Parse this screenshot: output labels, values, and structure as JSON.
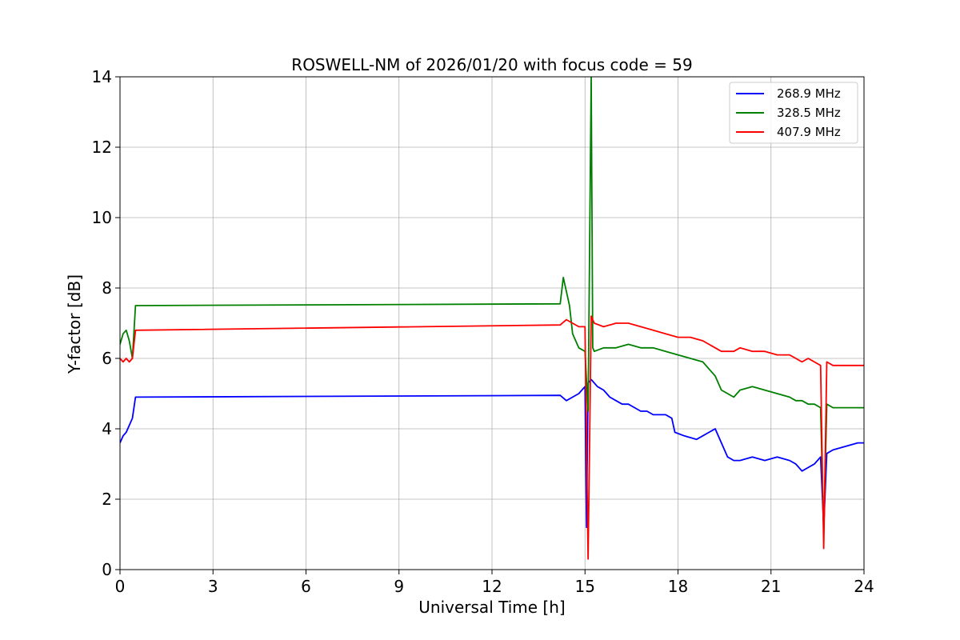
{
  "chart_data": {
    "type": "line",
    "title": "ROSWELL-NM of 2026/01/20 with focus code = 59",
    "xlabel": "Universal Time [h]",
    "ylabel": "Y-factor [dB]",
    "xlim": [
      0,
      24
    ],
    "ylim": [
      0,
      14
    ],
    "xticks": [
      0,
      3,
      6,
      9,
      12,
      15,
      18,
      21,
      24
    ],
    "yticks": [
      0,
      2,
      4,
      6,
      8,
      10,
      12,
      14
    ],
    "grid": true,
    "legend_position": "top-right",
    "series": [
      {
        "name": "268.9 MHz",
        "color": "#0000ff",
        "x": [
          0.0,
          0.1,
          0.2,
          0.3,
          0.4,
          0.5,
          14.2,
          14.4,
          14.6,
          14.8,
          15.0,
          15.05,
          15.1,
          15.2,
          15.4,
          15.6,
          15.8,
          16.0,
          16.2,
          16.4,
          16.6,
          16.8,
          17.0,
          17.2,
          17.4,
          17.6,
          17.8,
          17.9,
          18.2,
          18.6,
          19.0,
          19.2,
          19.4,
          19.6,
          19.8,
          20.0,
          20.4,
          20.8,
          21.2,
          21.6,
          21.8,
          22.0,
          22.2,
          22.4,
          22.6,
          22.7,
          22.8,
          23.0,
          23.4,
          23.8,
          24.0
        ],
        "values": [
          3.6,
          3.8,
          3.9,
          4.1,
          4.3,
          4.9,
          4.95,
          4.8,
          4.9,
          5.0,
          5.2,
          1.2,
          5.3,
          5.4,
          5.2,
          5.1,
          4.9,
          4.8,
          4.7,
          4.7,
          4.6,
          4.5,
          4.5,
          4.4,
          4.4,
          4.4,
          4.3,
          3.9,
          3.8,
          3.7,
          3.9,
          4.0,
          3.6,
          3.2,
          3.1,
          3.1,
          3.2,
          3.1,
          3.2,
          3.1,
          3.0,
          2.8,
          2.9,
          3.0,
          3.2,
          1.2,
          3.3,
          3.4,
          3.5,
          3.6,
          3.6
        ]
      },
      {
        "name": "328.5 MHz",
        "color": "#008000",
        "x": [
          0.0,
          0.1,
          0.2,
          0.3,
          0.4,
          0.5,
          14.2,
          14.3,
          14.4,
          14.5,
          14.6,
          14.8,
          15.0,
          15.1,
          15.2,
          15.25,
          15.3,
          15.6,
          16.0,
          16.4,
          16.8,
          17.2,
          17.6,
          18.0,
          18.4,
          18.8,
          19.0,
          19.2,
          19.4,
          19.6,
          19.8,
          20.0,
          20.4,
          20.8,
          21.2,
          21.6,
          21.8,
          22.0,
          22.2,
          22.4,
          22.6,
          22.7,
          22.8,
          23.0,
          23.4,
          23.8,
          24.0
        ],
        "values": [
          6.4,
          6.7,
          6.8,
          6.5,
          6.0,
          7.5,
          7.55,
          8.3,
          7.9,
          7.5,
          6.7,
          6.3,
          6.2,
          4.5,
          14.0,
          6.3,
          6.2,
          6.3,
          6.3,
          6.4,
          6.3,
          6.3,
          6.2,
          6.1,
          6.0,
          5.9,
          5.7,
          5.5,
          5.1,
          5.0,
          4.9,
          5.1,
          5.2,
          5.1,
          5.0,
          4.9,
          4.8,
          4.8,
          4.7,
          4.7,
          4.6,
          1.0,
          4.7,
          4.6,
          4.6,
          4.6,
          4.6
        ]
      },
      {
        "name": "407.9 MHz",
        "color": "#ff0000",
        "x": [
          0.0,
          0.1,
          0.2,
          0.3,
          0.4,
          0.5,
          14.2,
          14.4,
          14.6,
          14.8,
          15.0,
          15.1,
          15.2,
          15.3,
          15.6,
          16.0,
          16.4,
          16.8,
          17.2,
          17.6,
          18.0,
          18.4,
          18.8,
          19.0,
          19.2,
          19.4,
          19.6,
          19.8,
          20.0,
          20.4,
          20.8,
          21.2,
          21.6,
          21.8,
          22.0,
          22.2,
          22.4,
          22.6,
          22.7,
          22.8,
          23.0,
          23.4,
          23.8,
          24.0
        ],
        "values": [
          6.0,
          5.9,
          6.0,
          5.9,
          6.0,
          6.8,
          6.95,
          7.1,
          7.0,
          6.9,
          6.9,
          0.3,
          7.2,
          7.0,
          6.9,
          7.0,
          7.0,
          6.9,
          6.8,
          6.7,
          6.6,
          6.6,
          6.5,
          6.4,
          6.3,
          6.2,
          6.2,
          6.2,
          6.3,
          6.2,
          6.2,
          6.1,
          6.1,
          6.0,
          5.9,
          6.0,
          5.9,
          5.8,
          0.6,
          5.9,
          5.8,
          5.8,
          5.8,
          5.8
        ]
      }
    ]
  }
}
